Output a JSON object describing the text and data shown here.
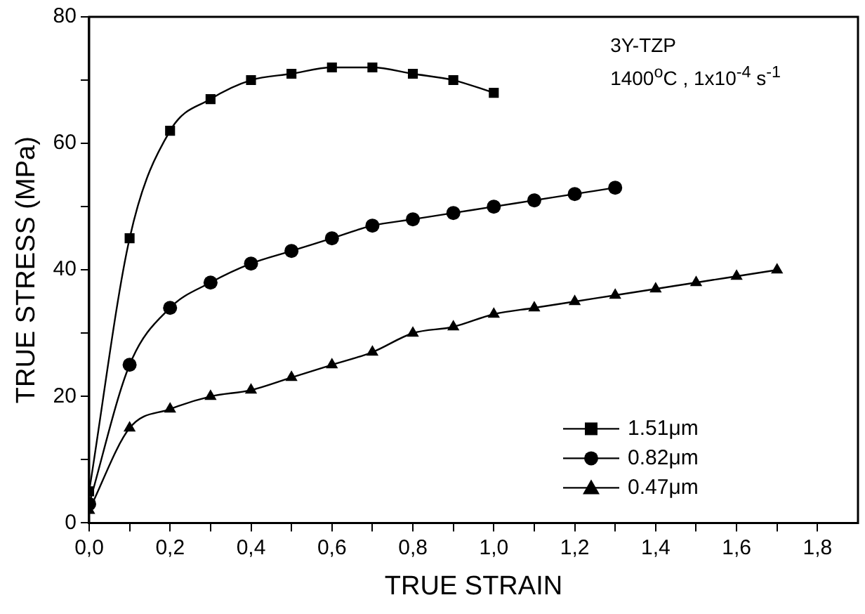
{
  "chart_data": {
    "type": "line",
    "xlabel": "TRUE STRAIN",
    "ylabel": "TRUE STRESS (MPa)",
    "annotations": [
      "3Y-TZP",
      "1400$^{o}$C ,  1x10$^{-4}$ s$^{-1}$"
    ],
    "xlim": [
      0,
      1.9
    ],
    "ylim": [
      0,
      80
    ],
    "xticks": [
      {
        "value": 0,
        "label": "0,0"
      },
      {
        "value": 0.1,
        "label": null
      },
      {
        "value": 0.2,
        "label": "0,2"
      },
      {
        "value": 0.3,
        "label": null
      },
      {
        "value": 0.4,
        "label": "0,4"
      },
      {
        "value": 0.5,
        "label": null
      },
      {
        "value": 0.6,
        "label": "0,6"
      },
      {
        "value": 0.7,
        "label": null
      },
      {
        "value": 0.8,
        "label": "0,8"
      },
      {
        "value": 0.9,
        "label": null
      },
      {
        "value": 1.0,
        "label": "1,0"
      },
      {
        "value": 1.1,
        "label": null
      },
      {
        "value": 1.2,
        "label": "1,2"
      },
      {
        "value": 1.3,
        "label": null
      },
      {
        "value": 1.4,
        "label": "1,4"
      },
      {
        "value": 1.5,
        "label": null
      },
      {
        "value": 1.6,
        "label": "1,6"
      },
      {
        "value": 1.7,
        "label": null
      },
      {
        "value": 1.8,
        "label": "1,8"
      }
    ],
    "yticks": [
      0,
      {
        "value": 10,
        "label": null
      },
      20,
      {
        "value": 30,
        "label": null
      },
      40,
      {
        "value": 50,
        "label": null
      },
      60,
      {
        "value": 70,
        "label": null
      },
      80
    ],
    "grid": false,
    "legend": "bottom right",
    "line_style": "solid",
    "series": [
      {
        "name": "1.51μm",
        "color": "#000000",
        "marker": "square",
        "x": [
          0,
          0.1,
          0.2,
          0.3,
          0.4,
          0.5,
          0.6,
          0.7,
          0.8,
          0.9,
          1.0
        ],
        "values": [
          5,
          45,
          62,
          67,
          70,
          71,
          72,
          72,
          71,
          70,
          68
        ]
      },
      {
        "name": "0.82μm",
        "color": "#000000",
        "marker": "circle",
        "x": [
          0,
          0.1,
          0.2,
          0.3,
          0.4,
          0.5,
          0.6,
          0.7,
          0.8,
          0.9,
          1.0,
          1.1,
          1.2,
          1.3
        ],
        "values": [
          3,
          25,
          34,
          38,
          41,
          43,
          45,
          47,
          48,
          49,
          50,
          51,
          52,
          53
        ]
      },
      {
        "name": "0.47μm",
        "color": "#000000",
        "marker": "triangle",
        "x": [
          0,
          0.1,
          0.2,
          0.3,
          0.4,
          0.5,
          0.6,
          0.7,
          0.8,
          0.9,
          1.0,
          1.1,
          1.2,
          1.3,
          1.4,
          1.5,
          1.6,
          1.7
        ],
        "values": [
          2,
          15,
          18,
          20,
          21,
          23,
          25,
          27,
          30,
          31,
          33,
          34,
          35,
          36,
          37,
          38,
          39,
          40
        ]
      }
    ]
  }
}
